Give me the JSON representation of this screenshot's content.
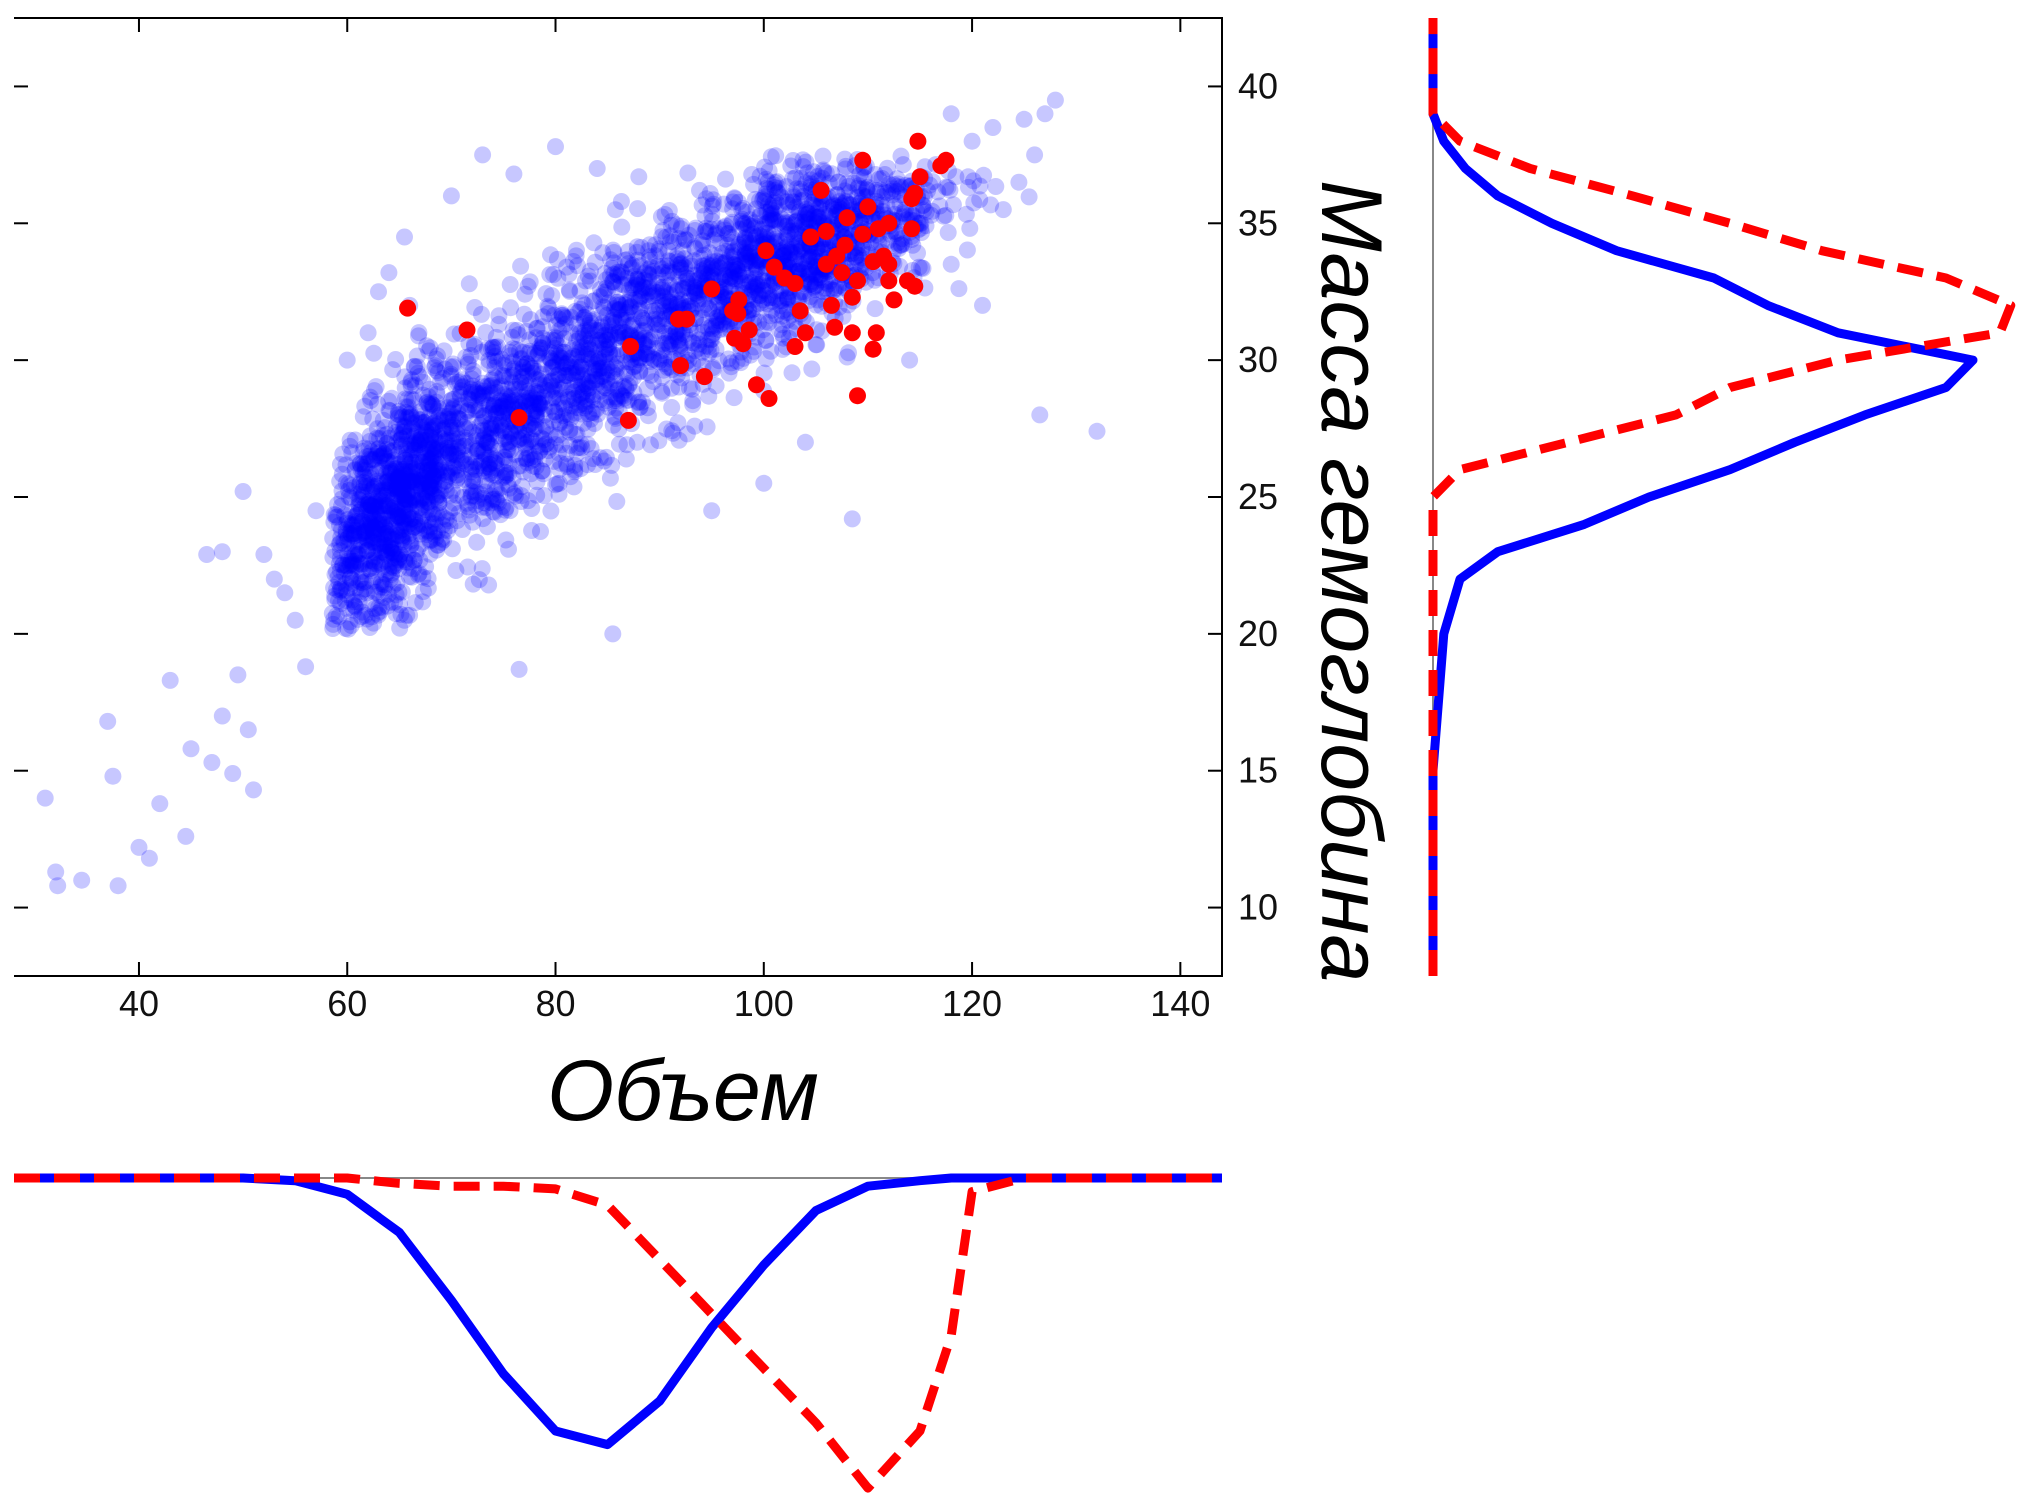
{
  "chart_data": [
    {
      "type": "scatter",
      "xlabel": "Объем",
      "ylabel": "Масса гемоглобина",
      "xlim": [
        28,
        144
      ],
      "ylim": [
        7.5,
        42.5
      ],
      "xticks": [
        40,
        60,
        80,
        100,
        120,
        140
      ],
      "yticks": [
        10,
        15,
        20,
        25,
        30,
        35,
        40
      ],
      "y_axis_side": "right",
      "grid": false,
      "series": [
        {
          "color": "#0000ff",
          "opacity": 0.22,
          "points": [
            [
              31.0,
              14.0
            ],
            [
              32.0,
              11.3
            ],
            [
              32.2,
              10.8
            ],
            [
              34.5,
              11.0
            ],
            [
              37.0,
              16.8
            ],
            [
              37.5,
              14.8
            ],
            [
              38.0,
              10.8
            ],
            [
              40.0,
              12.2
            ],
            [
              41.0,
              11.8
            ],
            [
              42.0,
              13.8
            ],
            [
              43.0,
              18.3
            ],
            [
              44.5,
              12.6
            ],
            [
              45.0,
              15.8
            ],
            [
              46.5,
              22.9
            ],
            [
              47.0,
              15.3
            ],
            [
              48.0,
              17.0
            ],
            [
              49.0,
              14.9
            ],
            [
              49.5,
              18.5
            ],
            [
              50.5,
              16.5
            ],
            [
              51.0,
              14.3
            ],
            [
              53.0,
              22.0
            ],
            [
              54.0,
              21.5
            ],
            [
              55.0,
              20.5
            ],
            [
              56.0,
              18.8
            ],
            [
              57.0,
              24.5
            ],
            [
              50.0,
              25.2
            ],
            [
              52.0,
              22.9
            ],
            [
              48.0,
              23.0
            ],
            [
              60.0,
              30.0
            ],
            [
              62.0,
              31.0
            ],
            [
              63.0,
              32.5
            ],
            [
              64.0,
              33.2
            ],
            [
              65.5,
              34.5
            ],
            [
              66.0,
              32.0
            ],
            [
              70.0,
              36.0
            ],
            [
              73.0,
              37.5
            ],
            [
              76.0,
              36.8
            ],
            [
              80.0,
              37.8
            ],
            [
              84.0,
              37.0
            ],
            [
              88.0,
              36.7
            ],
            [
              76.5,
              18.7
            ],
            [
              85.5,
              20.0
            ],
            [
              95.0,
              24.5
            ],
            [
              100.0,
              25.5
            ],
            [
              104.0,
              27.0
            ],
            [
              108.5,
              24.2
            ],
            [
              114.0,
              30.0
            ],
            [
              118.0,
              33.5
            ],
            [
              123.0,
              35.5
            ],
            [
              124.5,
              36.5
            ],
            [
              126.0,
              37.5
            ],
            [
              127.0,
              39.0
            ],
            [
              128.0,
              39.5
            ],
            [
              126.5,
              28.0
            ],
            [
              132.0,
              27.4
            ],
            [
              125.0,
              38.8
            ],
            [
              122.0,
              38.5
            ],
            [
              120.0,
              38.0
            ],
            [
              118.0,
              39.0
            ],
            [
              121.0,
              32.0
            ]
          ],
          "dense_regions": [
            {
              "x": 75,
              "y": 27.5,
              "sx": 7.5,
              "sy": 2.7,
              "rho": 0.72
            },
            {
              "x": 90,
              "y": 31.5,
              "sx": 9.0,
              "sy": 2.6,
              "rho": 0.7
            },
            {
              "x": 104,
              "y": 34.2,
              "sx": 6.5,
              "sy": 1.8,
              "rho": 0.55
            },
            {
              "x": 64,
              "y": 24.5,
              "sx": 3.5,
              "sy": 2.4,
              "rho": 0.6
            }
          ]
        },
        {
          "color": "#ff0000",
          "points": [
            [
              65.8,
              31.9
            ],
            [
              71.5,
              31.1
            ],
            [
              76.5,
              27.9
            ],
            [
              87.0,
              27.8
            ],
            [
              87.2,
              30.5
            ],
            [
              92.0,
              29.8
            ],
            [
              91.8,
              31.5
            ],
            [
              92.6,
              31.5
            ],
            [
              94.3,
              29.4
            ],
            [
              95.0,
              32.6
            ],
            [
              97.0,
              31.8
            ],
            [
              97.6,
              32.2
            ],
            [
              97.2,
              30.8
            ],
            [
              98.6,
              31.1
            ],
            [
              97.5,
              31.7
            ],
            [
              98.0,
              30.6
            ],
            [
              99.3,
              29.1
            ],
            [
              100.5,
              28.6
            ],
            [
              100.2,
              34.0
            ],
            [
              101.0,
              33.4
            ],
            [
              103.0,
              32.8
            ],
            [
              103.5,
              31.8
            ],
            [
              104.0,
              31.0
            ],
            [
              103.0,
              30.5
            ],
            [
              104.5,
              34.5
            ],
            [
              105.5,
              36.2
            ],
            [
              106.0,
              33.5
            ],
            [
              106.5,
              32.0
            ],
            [
              106.8,
              31.2
            ],
            [
              107.0,
              33.8
            ],
            [
              107.5,
              33.2
            ],
            [
              107.8,
              34.2
            ],
            [
              108.0,
              35.2
            ],
            [
              108.5,
              32.3
            ],
            [
              108.5,
              31.0
            ],
            [
              109.0,
              32.9
            ],
            [
              109.0,
              28.7
            ],
            [
              109.5,
              37.3
            ],
            [
              109.5,
              34.6
            ],
            [
              110.0,
              35.6
            ],
            [
              110.5,
              33.6
            ],
            [
              110.5,
              30.4
            ],
            [
              110.8,
              31.0
            ],
            [
              111.0,
              34.8
            ],
            [
              111.5,
              33.8
            ],
            [
              112.0,
              32.9
            ],
            [
              112.0,
              33.5
            ],
            [
              112.5,
              32.2
            ],
            [
              113.8,
              32.9
            ],
            [
              114.2,
              34.8
            ],
            [
              114.2,
              35.9
            ],
            [
              114.5,
              36.1
            ],
            [
              114.5,
              32.7
            ],
            [
              114.8,
              38.0
            ],
            [
              115.0,
              36.7
            ],
            [
              117.0,
              37.1
            ],
            [
              117.5,
              37.3
            ],
            [
              112.0,
              35.0
            ],
            [
              106.0,
              34.7
            ],
            [
              102.0,
              33.0
            ]
          ]
        }
      ]
    },
    {
      "type": "line",
      "orientation": "vertical-marginal",
      "y": [
        7.5,
        10,
        15,
        20,
        22,
        23,
        24,
        25,
        26,
        27,
        28,
        29,
        30,
        31,
        32,
        33,
        34,
        35,
        36,
        37,
        38,
        39,
        40,
        42.5
      ],
      "series": [
        {
          "color": "#0000ff",
          "style": "solid",
          "values": [
            0,
            0,
            0,
            0.02,
            0.05,
            0.12,
            0.28,
            0.4,
            0.55,
            0.67,
            0.8,
            0.95,
            1.0,
            0.75,
            0.62,
            0.52,
            0.34,
            0.22,
            0.12,
            0.06,
            0.02,
            0,
            0,
            0
          ]
        },
        {
          "color": "#ff0000",
          "style": "dashed",
          "values": [
            0,
            0,
            0,
            0,
            0,
            0,
            0,
            0,
            0.05,
            0.25,
            0.45,
            0.55,
            0.75,
            1.05,
            1.07,
            0.95,
            0.72,
            0.55,
            0.37,
            0.18,
            0.05,
            0,
            0,
            0
          ]
        }
      ]
    },
    {
      "type": "line",
      "orientation": "horizontal-marginal",
      "x": [
        28,
        50,
        55,
        60,
        65,
        70,
        75,
        80,
        85,
        90,
        95,
        100,
        105,
        110,
        115,
        118,
        120,
        125,
        130,
        144
      ],
      "series": [
        {
          "color": "#0000ff",
          "style": "solid",
          "values": [
            0,
            0,
            0.01,
            0.06,
            0.2,
            0.45,
            0.72,
            0.93,
            0.98,
            0.82,
            0.55,
            0.32,
            0.12,
            0.03,
            0.01,
            0,
            0,
            0,
            0,
            0
          ]
        },
        {
          "color": "#ff0000",
          "style": "dashed",
          "values": [
            0,
            0,
            0,
            0,
            0.02,
            0.03,
            0.03,
            0.04,
            0.1,
            0.3,
            0.5,
            0.7,
            0.9,
            1.14,
            0.93,
            0.58,
            0.05,
            0,
            0,
            0
          ]
        }
      ]
    }
  ]
}
